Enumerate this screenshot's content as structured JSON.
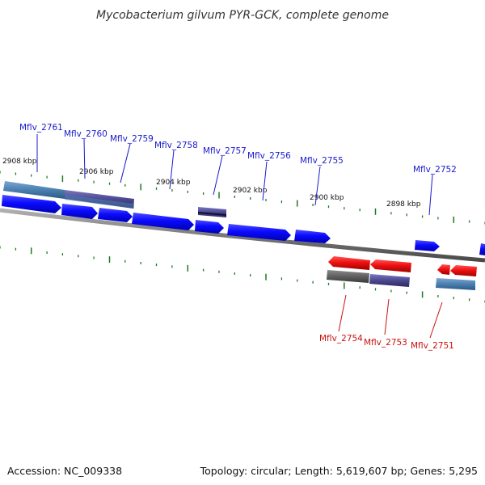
{
  "title": "Mycobacterium gilvum PYR-GCK, complete genome",
  "footer": {
    "accession": "Accession: NC_009338",
    "summary": "Topology: circular; Length: 5,619,607 bp; Genes: 5,295"
  },
  "colors": {
    "forward_cds": "#0a0aff",
    "reverse_cds": "#ee1111",
    "forward_label": "#1a1acc",
    "reverse_label": "#cc1111",
    "backbone": "#8a8a8a",
    "tick": "#1f7a1f",
    "steelblue_feature": "#4a7fb0",
    "slate_feature": "#4b4890",
    "gray_feature": "#666666"
  },
  "scale_ticks": [
    "2908 kbp",
    "2906 kbp",
    "2904 kbp",
    "2902 kbp",
    "2900 kbp",
    "2898 kbp"
  ],
  "forward_genes": [
    "Mflv_2761",
    "Mflv_2760",
    "Mflv_2759",
    "Mflv_2758",
    "Mflv_2757",
    "Mflv_2756",
    "Mflv_2755",
    "Mflv_2752"
  ],
  "reverse_genes": [
    "Mflv_2754",
    "Mflv_2753",
    "Mflv_2751"
  ]
}
